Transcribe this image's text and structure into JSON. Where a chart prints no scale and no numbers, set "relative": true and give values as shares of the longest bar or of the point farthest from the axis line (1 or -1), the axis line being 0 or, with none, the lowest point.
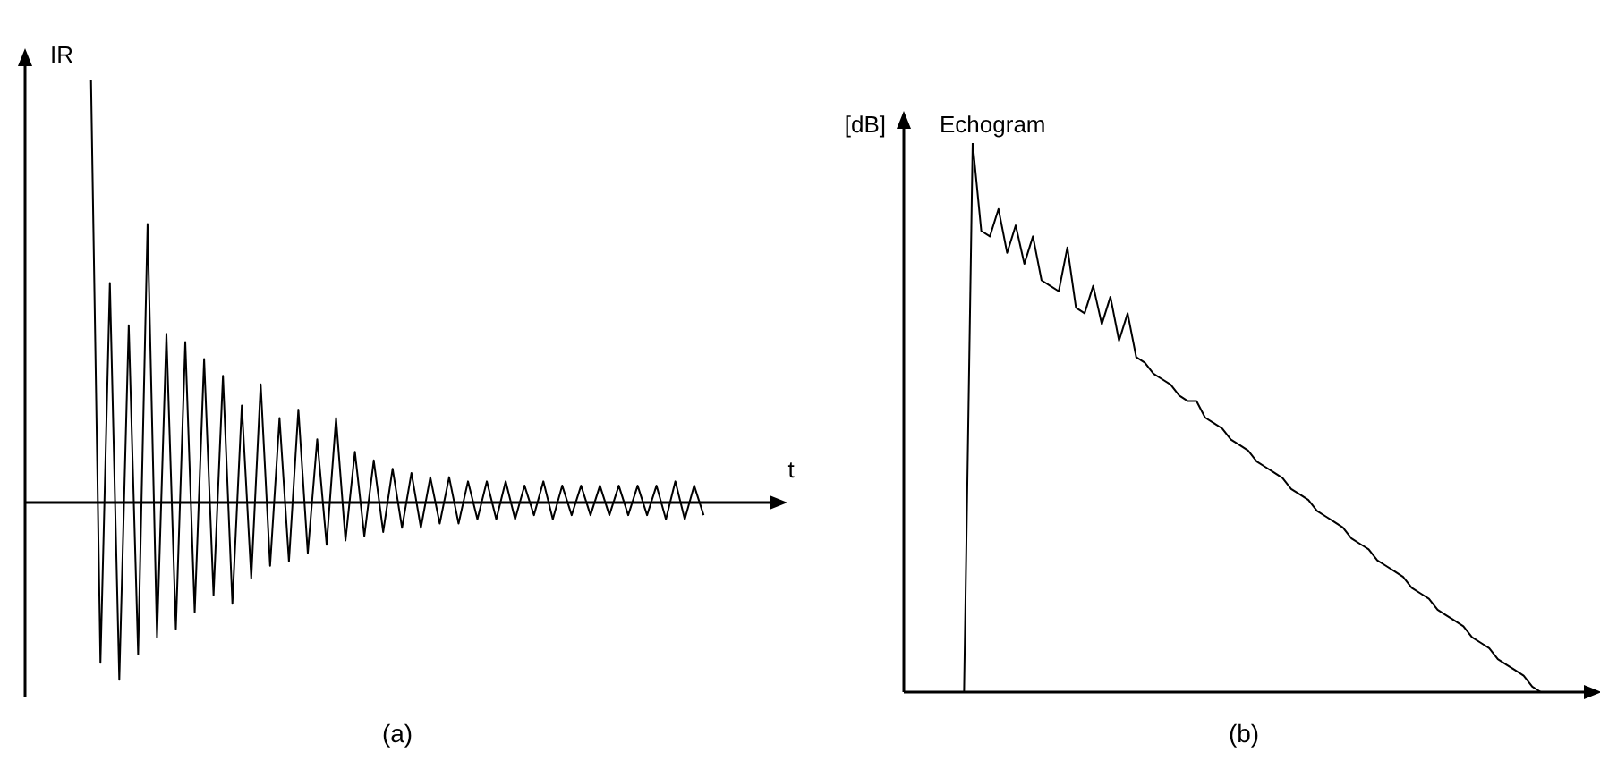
{
  "chart_data": [
    {
      "type": "line",
      "relative": true,
      "ylabel": "IR",
      "xlabel": "t",
      "annotations": [
        "(a)"
      ],
      "tick_labels": false,
      "color": "#000000",
      "categories": [
        null,
        null,
        null,
        null,
        null,
        null,
        null,
        null,
        null,
        null,
        null,
        null,
        null,
        null,
        null,
        null,
        null,
        null,
        null,
        null,
        null,
        null,
        null,
        null,
        null,
        null,
        null,
        null,
        null,
        null,
        null,
        null,
        null,
        null,
        null,
        null,
        null,
        null,
        null,
        null,
        null,
        null,
        null,
        null,
        null,
        null,
        null,
        null,
        null,
        null,
        null,
        null,
        null,
        null,
        null,
        null,
        null,
        null,
        null,
        null,
        null,
        null,
        null,
        null,
        null,
        null,
        null,
        null,
        null,
        null,
        null,
        null,
        null,
        null,
        null,
        null,
        null,
        null,
        null,
        null
      ],
      "values": [
        null,
        null,
        null,
        null,
        null,
        null,
        null,
        1.0,
        -0.38,
        0.52,
        -0.42,
        0.42,
        -0.36,
        0.66,
        -0.32,
        0.4,
        -0.3,
        0.38,
        -0.26,
        0.34,
        -0.22,
        0.3,
        -0.24,
        0.23,
        -0.18,
        0.28,
        -0.15,
        0.2,
        -0.14,
        0.22,
        -0.12,
        0.15,
        -0.1,
        0.2,
        -0.09,
        0.12,
        -0.08,
        0.1,
        -0.07,
        0.08,
        -0.06,
        0.07,
        -0.06,
        0.06,
        -0.05,
        0.06,
        -0.05,
        0.05,
        -0.04,
        0.05,
        -0.04,
        0.05,
        -0.04,
        0.04,
        -0.03,
        0.05,
        -0.04,
        0.04,
        -0.03,
        0.04,
        -0.03,
        0.04,
        -0.03,
        0.04,
        -0.03,
        0.04,
        -0.03,
        0.04,
        -0.04,
        0.05,
        -0.04,
        0.04,
        -0.03,
        null,
        null,
        null,
        null,
        null,
        null,
        null
      ]
    },
    {
      "type": "line",
      "relative": true,
      "title": "Echogram",
      "ylabel": "[dB]",
      "annotations": [
        "(b)"
      ],
      "tick_labels": false,
      "color": "#000000",
      "categories": [
        null,
        null,
        null,
        null,
        null,
        null,
        null,
        null,
        null,
        null,
        null,
        null,
        null,
        null,
        null,
        null,
        null,
        null,
        null,
        null,
        null,
        null,
        null,
        null,
        null,
        null,
        null,
        null,
        null,
        null,
        null,
        null,
        null,
        null,
        null,
        null,
        null,
        null,
        null,
        null,
        null,
        null,
        null,
        null,
        null,
        null,
        null,
        null,
        null,
        null,
        null,
        null,
        null,
        null,
        null,
        null,
        null,
        null,
        null,
        null,
        null,
        null,
        null,
        null,
        null,
        null,
        null,
        null,
        null,
        null,
        null,
        null,
        null,
        null,
        null,
        null,
        null,
        null,
        null,
        null
      ],
      "values": [
        null,
        null,
        null,
        null,
        null,
        null,
        null,
        0,
        1.0,
        0.84,
        0.83,
        0.88,
        0.8,
        0.85,
        0.78,
        0.83,
        0.75,
        0.74,
        0.73,
        0.81,
        0.7,
        0.69,
        0.74,
        0.67,
        0.72,
        0.64,
        0.69,
        0.61,
        0.6,
        0.58,
        0.57,
        0.56,
        0.54,
        0.53,
        0.53,
        0.5,
        0.49,
        0.48,
        0.46,
        0.45,
        0.44,
        0.42,
        0.41,
        0.4,
        0.39,
        0.37,
        0.36,
        0.35,
        0.33,
        0.32,
        0.31,
        0.3,
        0.28,
        0.27,
        0.26,
        0.24,
        0.23,
        0.22,
        0.21,
        0.19,
        0.18,
        0.17,
        0.15,
        0.14,
        0.13,
        0.12,
        0.1,
        0.09,
        0.08,
        0.06,
        0.05,
        0.04,
        0.03,
        0.01,
        0,
        null,
        null,
        null,
        null,
        null
      ]
    }
  ]
}
